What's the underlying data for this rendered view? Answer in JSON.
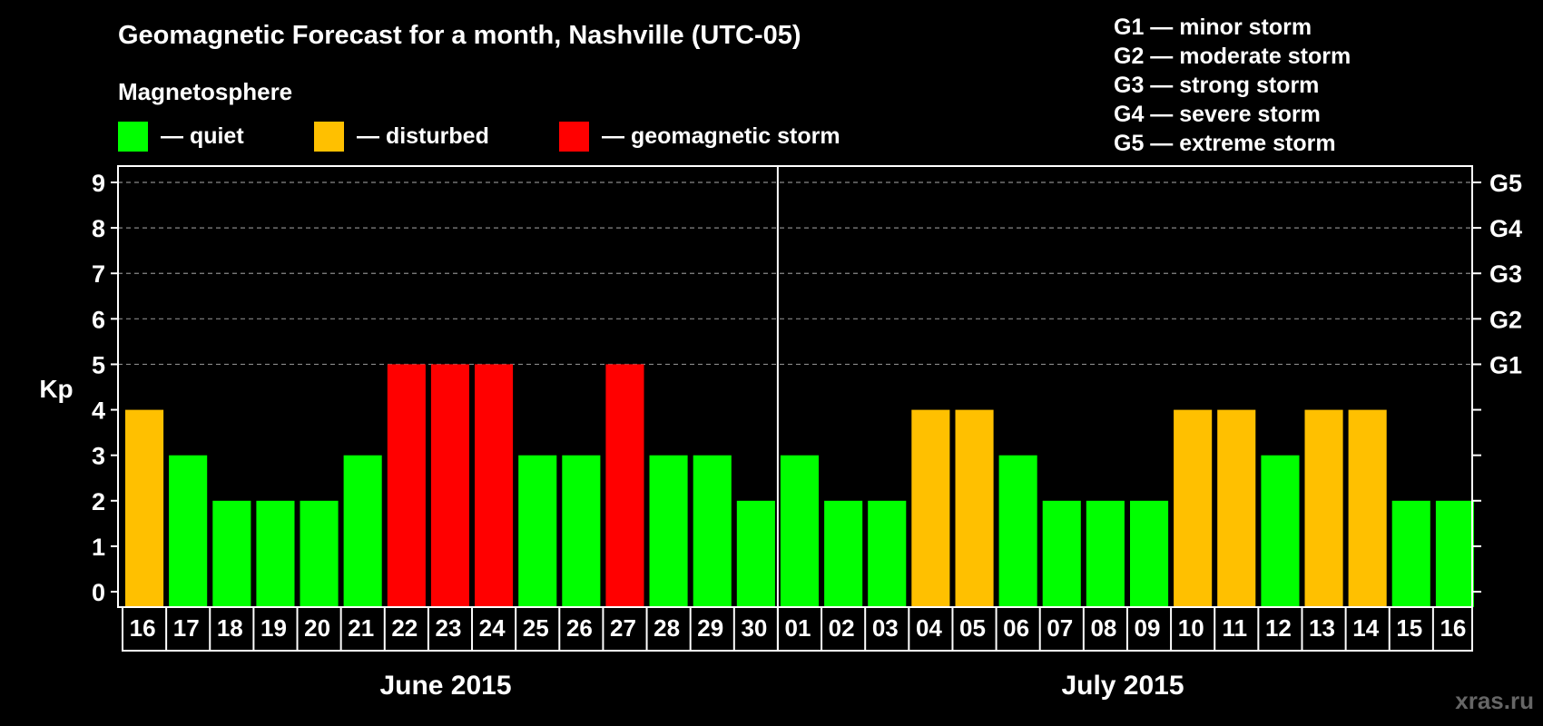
{
  "chart_data": {
    "type": "bar",
    "title": "Geomagnetic Forecast for a month, Nashville (UTC-05)",
    "subtitle": "Magnetosphere",
    "legend": [
      {
        "label": "— quiet",
        "color": "#00ff00"
      },
      {
        "label": "— disturbed",
        "color": "#ffc000"
      },
      {
        "label": "— geomagnetic storm",
        "color": "#ff0000"
      }
    ],
    "storm_scale_legend": [
      "G1 — minor storm",
      "G2 — moderate storm",
      "G3 — strong storm",
      "G4 — severe storm",
      "G5 — extreme storm"
    ],
    "ylabel": "Kp",
    "ylim": [
      0,
      9
    ],
    "yticks": [
      "0",
      "1",
      "2",
      "3",
      "4",
      "5",
      "6",
      "7",
      "8",
      "9"
    ],
    "right_axis_labels": [
      {
        "kp": 5,
        "label": "G1"
      },
      {
        "kp": 6,
        "label": "G2"
      },
      {
        "kp": 7,
        "label": "G3"
      },
      {
        "kp": 8,
        "label": "G4"
      },
      {
        "kp": 9,
        "label": "G5"
      }
    ],
    "categories": [
      "16",
      "17",
      "18",
      "19",
      "20",
      "21",
      "22",
      "23",
      "24",
      "25",
      "26",
      "27",
      "28",
      "29",
      "30",
      "01",
      "02",
      "03",
      "04",
      "05",
      "06",
      "07",
      "08",
      "09",
      "10",
      "11",
      "12",
      "13",
      "14",
      "15",
      "16"
    ],
    "values": [
      4,
      3,
      2,
      2,
      2,
      3,
      5,
      5,
      5,
      3,
      3,
      5,
      3,
      3,
      2,
      3,
      2,
      2,
      4,
      4,
      3,
      2,
      2,
      2,
      4,
      4,
      3,
      4,
      4,
      2,
      2
    ],
    "months": [
      {
        "label": "June 2015",
        "first_index": 0,
        "last_index": 14
      },
      {
        "label": "July 2015",
        "first_index": 15,
        "last_index": 30
      }
    ],
    "month_divider_after_index": 14,
    "grid": "dashed at Kp 5-9",
    "colors": {
      "quiet": "#00ff00",
      "disturbed": "#ffc000",
      "storm": "#ff0000"
    }
  },
  "watermark": "xras.ru"
}
